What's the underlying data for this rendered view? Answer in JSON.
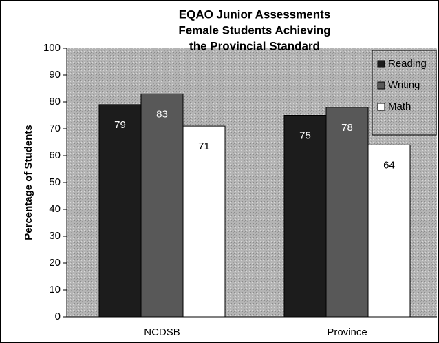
{
  "chart_data": {
    "type": "bar",
    "title": [
      "EQAO Junior Assessments",
      "Female Students Achieving",
      "the Provincial Standard"
    ],
    "y_label": "Percentage of Students",
    "categories": [
      "NCDSB",
      "Province"
    ],
    "series": [
      {
        "name": "Reading",
        "color": "#1c1c1c",
        "label_color": "#ffffff",
        "values": [
          79,
          75
        ]
      },
      {
        "name": "Writing",
        "color": "#585858",
        "label_color": "#ffffff",
        "values": [
          83,
          78
        ]
      },
      {
        "name": "Math",
        "color": "#ffffff",
        "label_color": "#000000",
        "values": [
          71,
          64
        ]
      }
    ],
    "ylim": [
      0,
      100
    ],
    "yticks": [
      0,
      10,
      20,
      30,
      40,
      50,
      60,
      70,
      80,
      90,
      100
    ],
    "grid": false,
    "legend": "top-right"
  }
}
